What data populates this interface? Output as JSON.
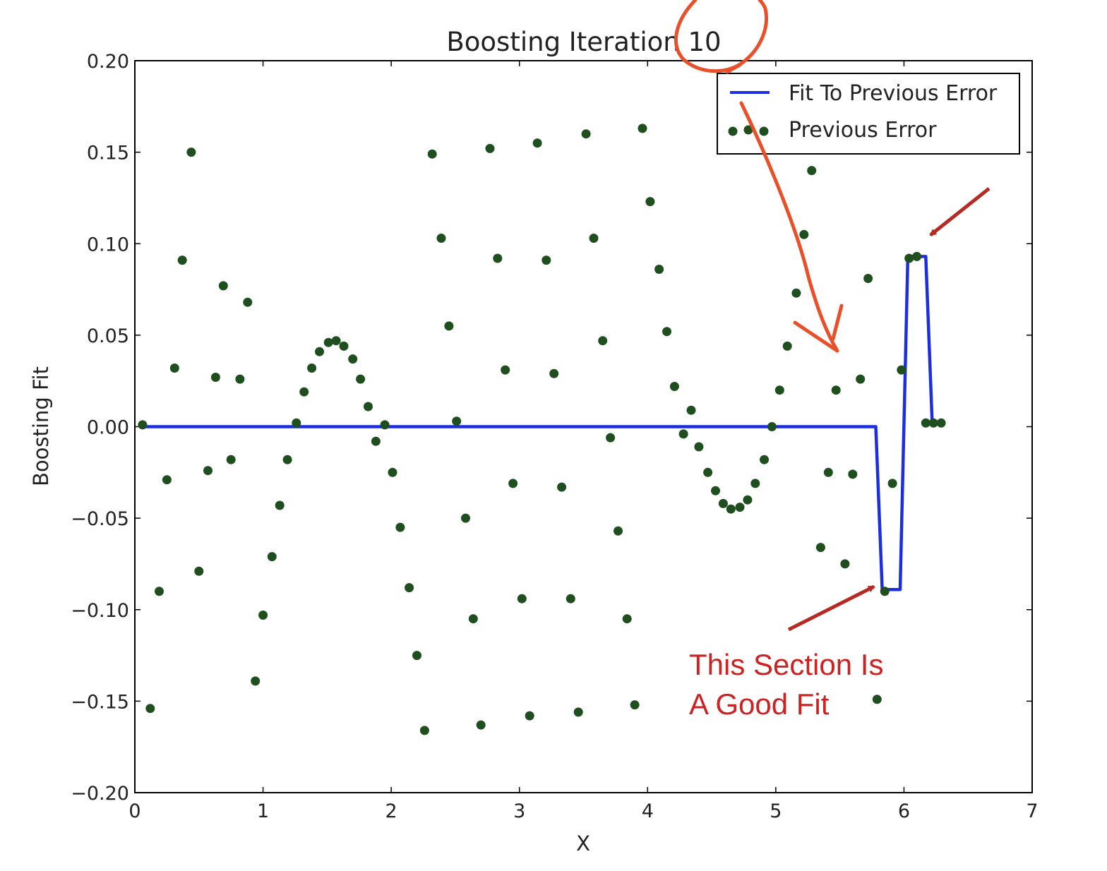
{
  "chart_data": {
    "type": "scatter",
    "title": "Boosting Iteration 10",
    "xlabel": "X",
    "ylabel": "Boosting Fit",
    "xlim": [
      0,
      7
    ],
    "ylim": [
      -0.2,
      0.2
    ],
    "xticks": [
      0,
      1,
      2,
      3,
      4,
      5,
      6,
      7
    ],
    "xtick_labels": [
      "0",
      "1",
      "2",
      "3",
      "4",
      "5",
      "6",
      "7"
    ],
    "yticks": [
      -0.2,
      -0.15,
      -0.1,
      -0.05,
      0.0,
      0.05,
      0.1,
      0.15,
      0.2
    ],
    "ytick_labels": [
      "−0.20",
      "−0.15",
      "−0.10",
      "−0.05",
      "0.00",
      "0.05",
      "0.10",
      "0.15",
      "0.20"
    ],
    "grid": false,
    "legend_position": "top-right",
    "series": [
      {
        "name": "Fit To Previous Error",
        "type": "line",
        "color": "#1c2ee0",
        "x": [
          0.06,
          5.78,
          5.83,
          5.9,
          5.97,
          6.03,
          6.07,
          6.17,
          6.22,
          6.29
        ],
        "y": [
          0.0,
          0.0,
          -0.089,
          -0.089,
          -0.089,
          0.093,
          0.093,
          0.093,
          0.002,
          0.002
        ]
      },
      {
        "name": "Previous Error",
        "type": "scatter",
        "color": "#1f4f1f",
        "x": [
          0.06,
          0.12,
          0.19,
          0.25,
          0.31,
          0.37,
          0.44,
          0.5,
          0.57,
          0.63,
          0.69,
          0.75,
          0.82,
          0.88,
          0.94,
          1.0,
          1.07,
          1.13,
          1.19,
          1.26,
          1.32,
          1.38,
          1.44,
          1.51,
          1.57,
          1.63,
          1.7,
          1.76,
          1.82,
          1.88,
          1.95,
          2.01,
          2.07,
          2.14,
          2.2,
          2.26,
          2.32,
          2.39,
          2.45,
          2.51,
          2.58,
          2.64,
          2.7,
          2.77,
          2.83,
          2.89,
          2.95,
          3.02,
          3.08,
          3.14,
          3.21,
          3.27,
          3.33,
          3.4,
          3.46,
          3.52,
          3.58,
          3.65,
          3.71,
          3.77,
          3.84,
          3.9,
          3.96,
          4.02,
          4.09,
          4.15,
          4.21,
          4.28,
          4.34,
          4.4,
          4.47,
          4.53,
          4.59,
          4.65,
          4.72,
          4.78,
          4.84,
          4.91,
          4.97,
          5.03,
          5.09,
          5.16,
          5.22,
          5.28,
          5.35,
          5.41,
          5.47,
          5.54,
          5.6,
          5.66,
          5.72,
          5.79,
          5.85,
          5.91,
          5.98,
          6.04,
          6.1,
          6.17,
          6.23,
          6.29
        ],
        "y": [
          0.001,
          -0.154,
          -0.09,
          -0.029,
          0.032,
          0.091,
          0.15,
          -0.079,
          -0.024,
          0.027,
          0.077,
          -0.018,
          0.026,
          0.068,
          -0.139,
          -0.103,
          -0.071,
          -0.043,
          -0.018,
          0.002,
          0.019,
          0.032,
          0.041,
          0.046,
          0.047,
          0.044,
          0.037,
          0.026,
          0.011,
          -0.008,
          0.001,
          -0.025,
          -0.055,
          -0.088,
          -0.125,
          -0.166,
          0.149,
          0.103,
          0.055,
          0.003,
          -0.05,
          -0.105,
          -0.163,
          0.152,
          0.092,
          0.031,
          -0.031,
          -0.094,
          -0.158,
          0.155,
          0.091,
          0.029,
          -0.033,
          -0.094,
          -0.156,
          0.16,
          0.103,
          0.047,
          -0.006,
          -0.057,
          -0.105,
          -0.152,
          0.163,
          0.123,
          0.086,
          0.052,
          0.022,
          -0.004,
          0.009,
          -0.011,
          -0.025,
          -0.035,
          -0.042,
          -0.045,
          -0.044,
          -0.04,
          -0.031,
          -0.018,
          0.0,
          0.02,
          0.044,
          0.073,
          0.105,
          0.14,
          -0.066,
          -0.025,
          0.02,
          -0.075,
          -0.026,
          0.026,
          0.081,
          -0.149,
          -0.09,
          -0.031,
          0.031,
          0.092,
          0.093,
          0.002,
          0.002,
          0.002
        ]
      }
    ]
  },
  "annotation": {
    "text_line1": "This Section Is",
    "text_line2": "A Good Fit",
    "color": "#cc2222",
    "arrow_color": "#b52a22"
  },
  "handwritten_markup": {
    "color": "#e8502a"
  }
}
